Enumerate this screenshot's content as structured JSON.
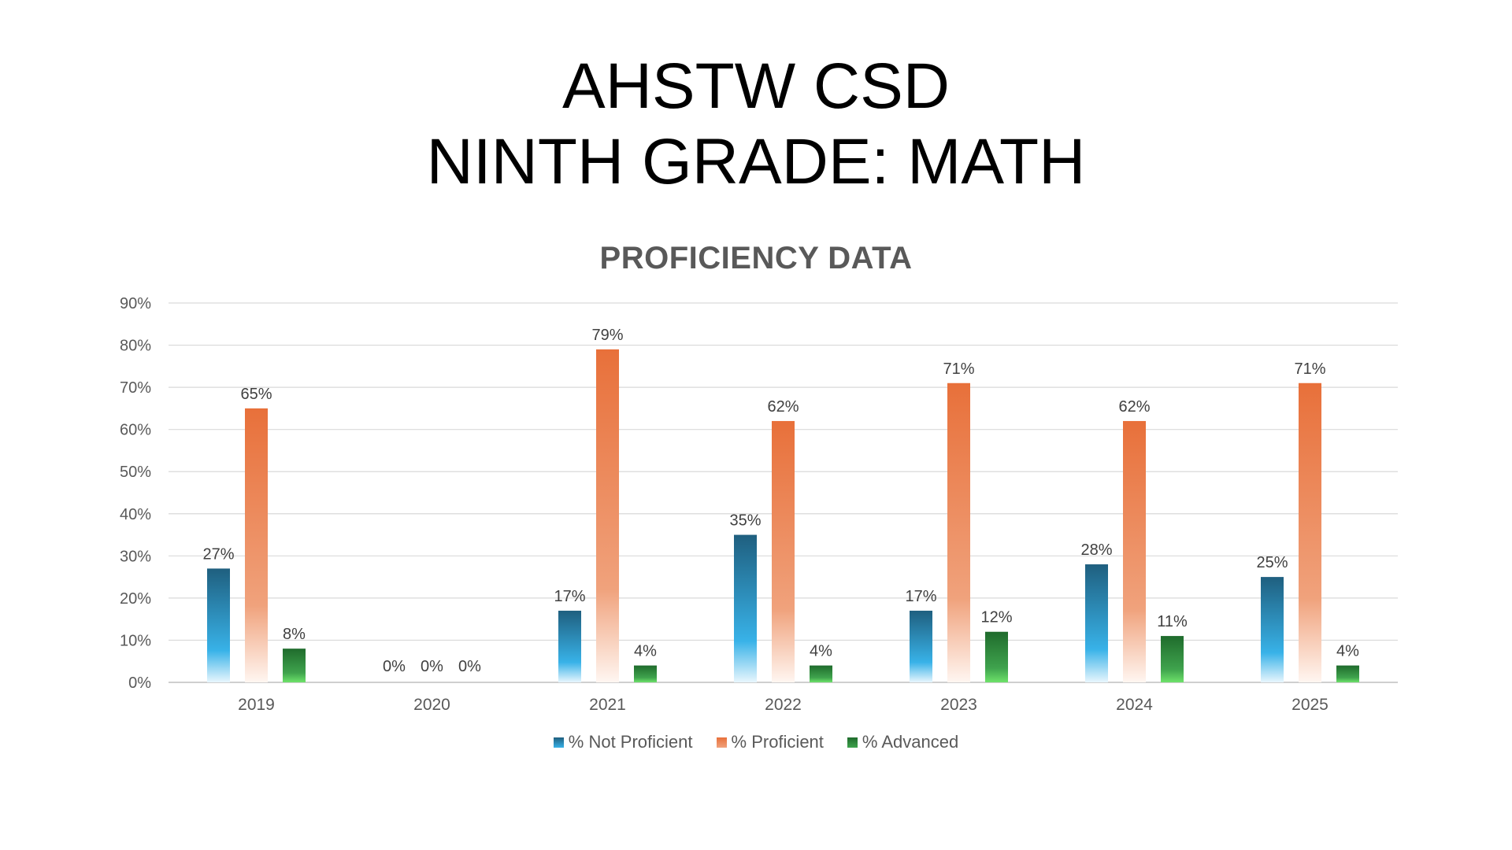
{
  "slide": {
    "title_line1": "AHSTW CSD",
    "title_line2": "NINTH GRADE: MATH"
  },
  "chart_data": {
    "type": "bar",
    "title": "PROFICIENCY DATA",
    "categories": [
      "2019",
      "2020",
      "2021",
      "2022",
      "2023",
      "2024",
      "2025"
    ],
    "series": [
      {
        "name": "% Not Proficient",
        "values": [
          27,
          0,
          17,
          35,
          17,
          28,
          25
        ],
        "labels": [
          "27%",
          "0%",
          "17%",
          "35%",
          "17%",
          "28%",
          "25%"
        ],
        "color_top": "#1F5F7F",
        "color_bottom": "#38B2E8",
        "color_fade": "#E8F6FD"
      },
      {
        "name": "% Proficient",
        "values": [
          65,
          0,
          79,
          62,
          71,
          62,
          71
        ],
        "labels": [
          "65%",
          "0%",
          "79%",
          "62%",
          "71%",
          "62%",
          "71%"
        ],
        "color_top": "#E8703A",
        "color_bottom": "#F0A27C",
        "color_fade": "#FFF6F1"
      },
      {
        "name": "% Advanced",
        "values": [
          8,
          0,
          4,
          4,
          12,
          11,
          4
        ],
        "labels": [
          "8%",
          "0%",
          "4%",
          "4%",
          "12%",
          "11%",
          "4%"
        ],
        "color_top": "#1F6B2C",
        "color_bottom": "#3FA34D",
        "color_fade": "#6EE26A"
      }
    ],
    "ylim": [
      0,
      90
    ],
    "yticks": [
      "0%",
      "10%",
      "20%",
      "30%",
      "40%",
      "50%",
      "60%",
      "70%",
      "80%",
      "90%"
    ],
    "grid": true,
    "legend": "bottom"
  }
}
